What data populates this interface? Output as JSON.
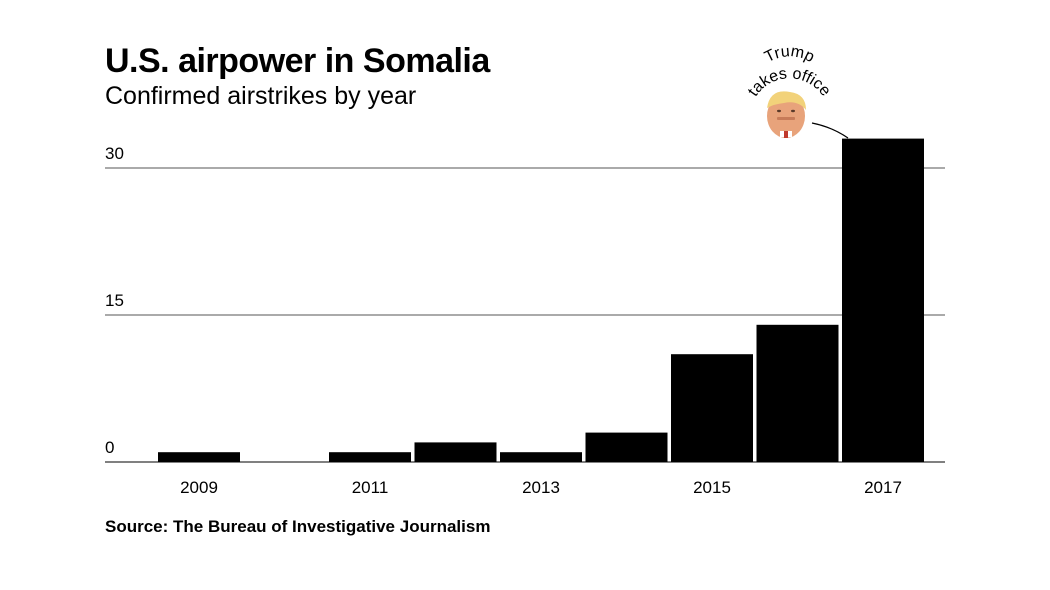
{
  "header": {
    "title": "U.S. airpower in Somalia",
    "subtitle": "Confirmed airstrikes by year"
  },
  "footer": {
    "source": "Source: The Bureau of Investigative Journalism"
  },
  "annotation": {
    "text": "Trump takes office",
    "line1": "Trump",
    "line2": "takes office",
    "target_year": 2017,
    "icon": "trump-portrait-icon"
  },
  "colors": {
    "bar": "#000000",
    "grid": "#555555",
    "background": "#ffffff"
  },
  "chart_data": {
    "type": "bar",
    "title": "U.S. airpower in Somalia",
    "subtitle": "Confirmed airstrikes by year",
    "xlabel": "",
    "ylabel": "",
    "categories": [
      2009,
      2010,
      2011,
      2012,
      2013,
      2014,
      2015,
      2016,
      2017
    ],
    "values": [
      1,
      0,
      1,
      2,
      1,
      3,
      11,
      14,
      33
    ],
    "x_tick_labels": [
      "2009",
      "2011",
      "2013",
      "2015",
      "2017"
    ],
    "y_ticks": [
      0,
      15,
      30
    ],
    "ylim": [
      0,
      33
    ],
    "grid": true
  }
}
